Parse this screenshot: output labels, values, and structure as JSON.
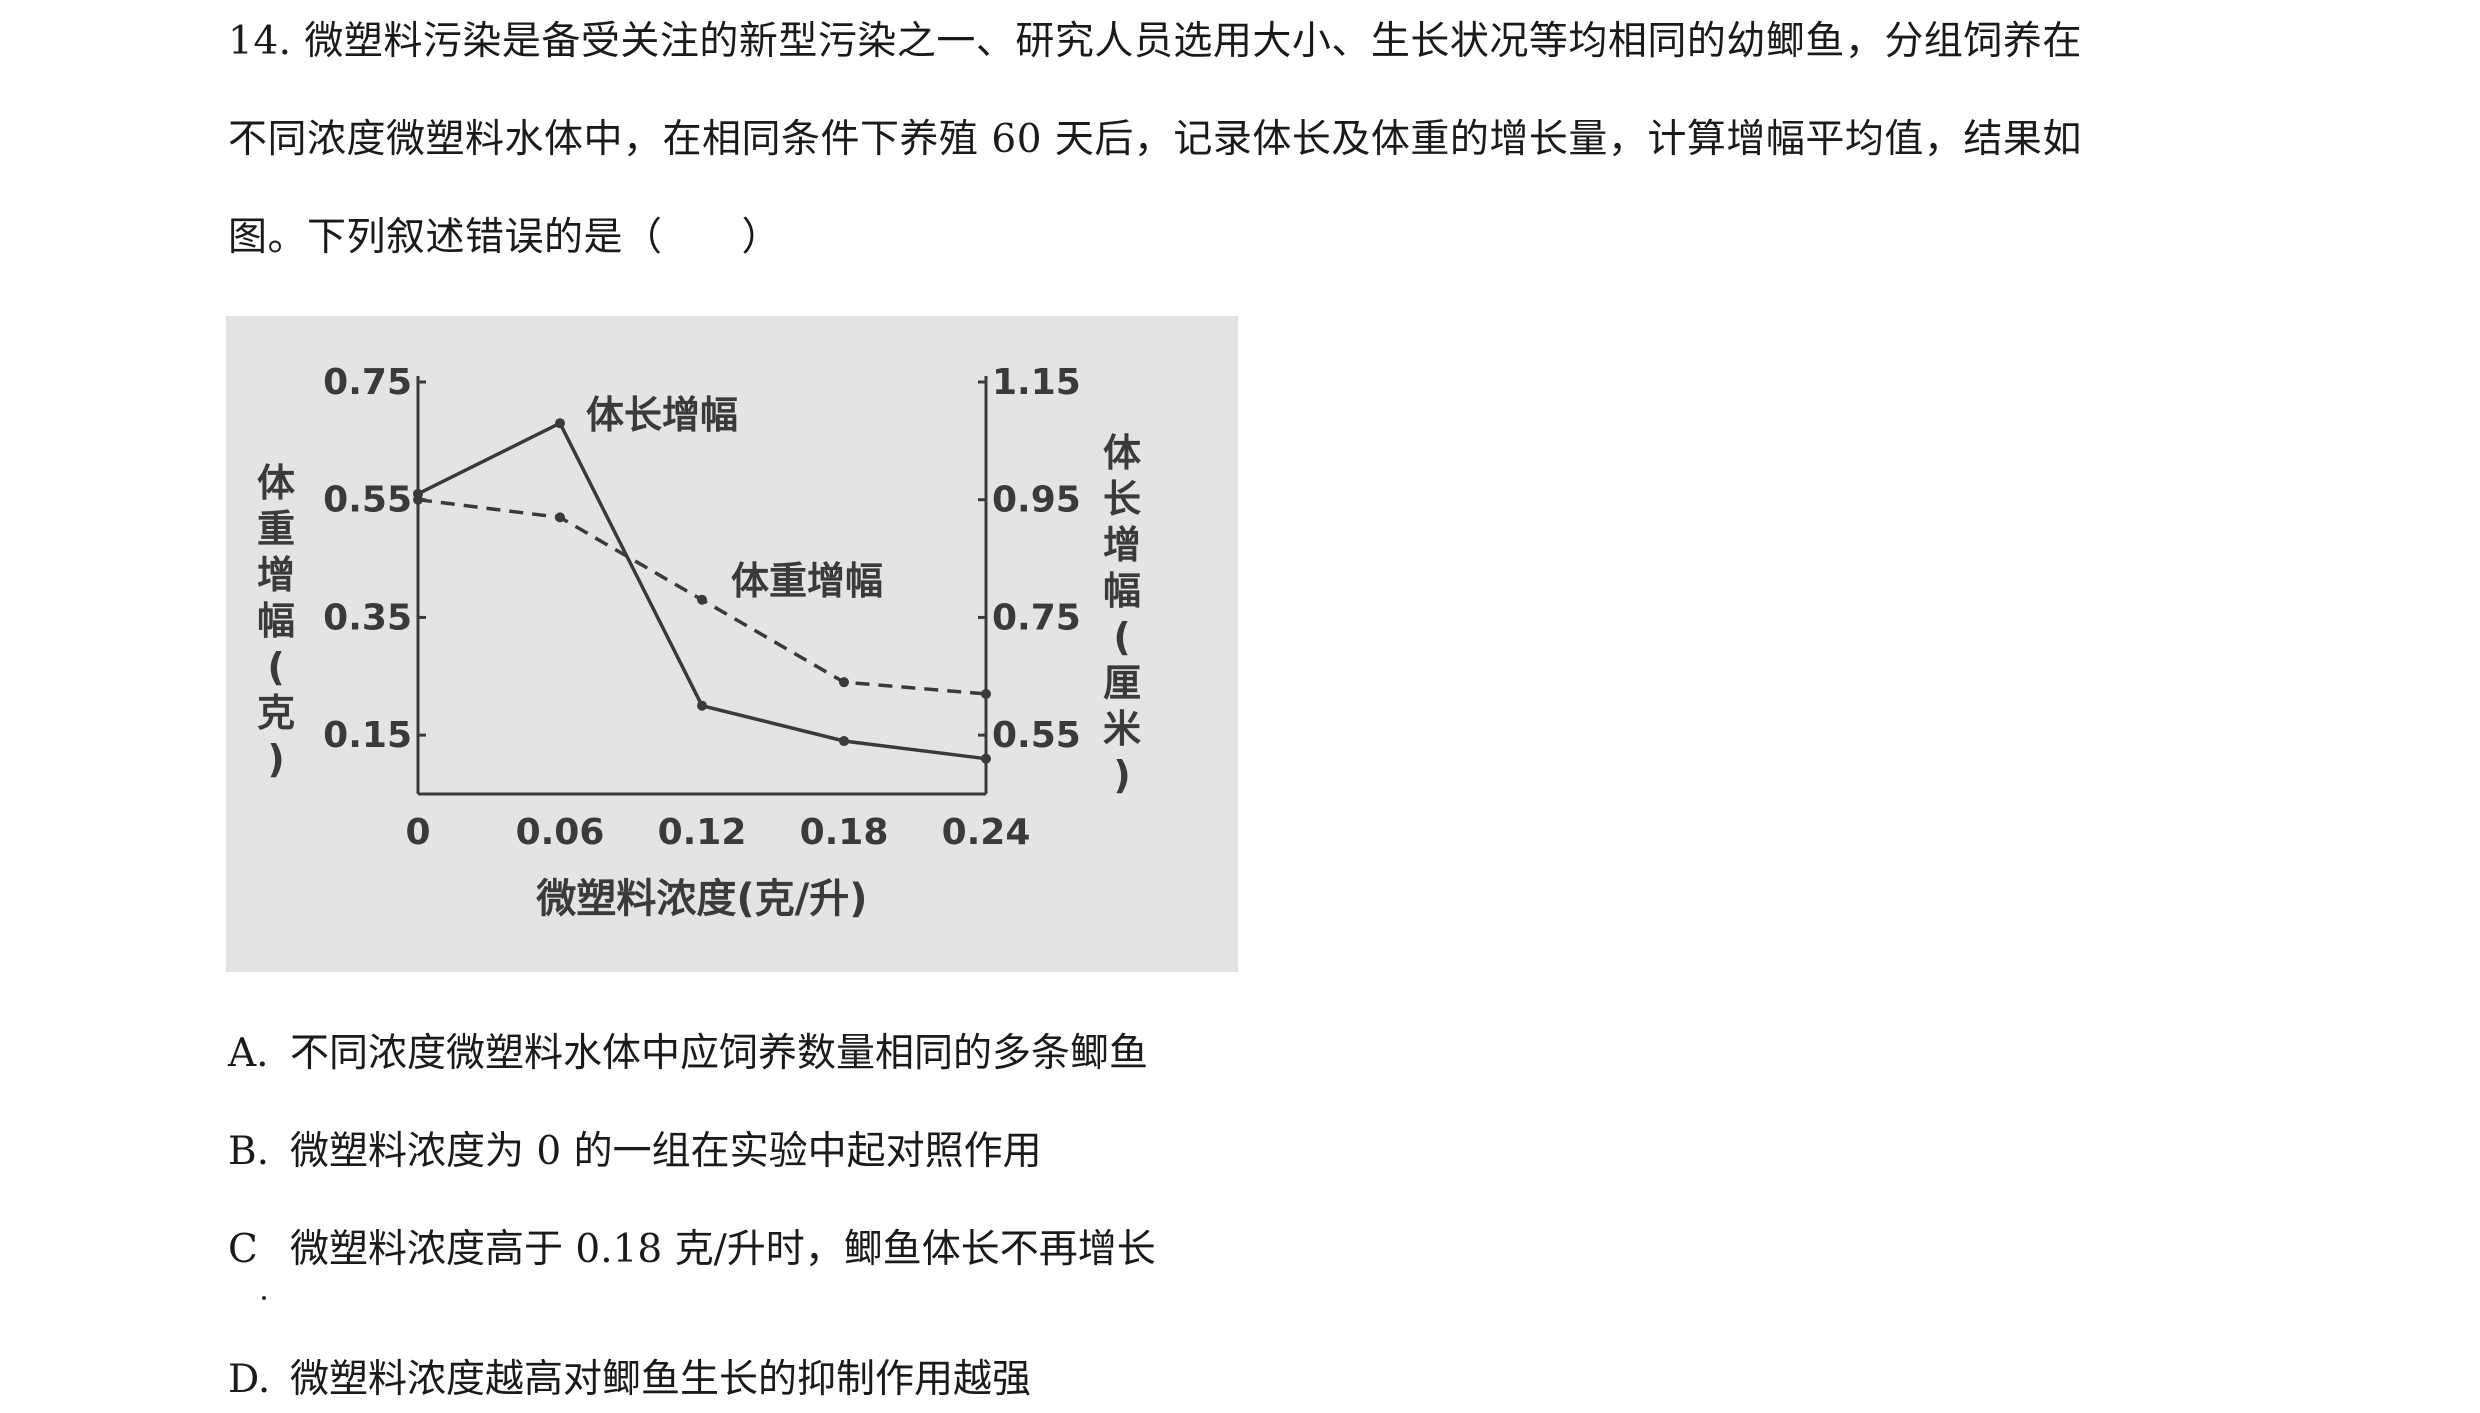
{
  "question": {
    "stem_lines": [
      "14. 微塑料污染是备受关注的新型污染之一、研究人员选用大小、生长状况等均相同的幼鲫鱼，分组饲养在",
      "不同浓度微塑料水体中，在相同条件下养殖 60 天后，记录体长及体重的增长量，计算增幅平均值，结果如",
      "图。下列叙述错误的是（　　）"
    ],
    "options": [
      {
        "letter": "A.",
        "text": "不同浓度微塑料水体中应饲养数量相同的多条鲫鱼"
      },
      {
        "letter": "B.",
        "text": "微塑料浓度为 0 的一组在实验中起对照作用"
      },
      {
        "letter": "C",
        "text": "微塑料浓度高于 0.18 克/升时，鲫鱼体长不再增长"
      },
      {
        "letter": "D.",
        "text": "微塑料浓度越高对鲫鱼生长的抑制作用越强"
      }
    ]
  },
  "chart_data": {
    "type": "line",
    "title": "",
    "xlabel": "微塑料浓度(克/升)",
    "x": [
      0,
      0.06,
      0.12,
      0.18,
      0.24
    ],
    "x_tick_labels": [
      "0",
      "0.06",
      "0.12",
      "0.18",
      "0.24"
    ],
    "ylabel_left": "体重增幅(克)",
    "ylabel_right": "体长增幅(厘米)",
    "y_left_ticks": [
      "0.75",
      "0.55",
      "0.35",
      "0.15"
    ],
    "y_right_ticks": [
      "1.15",
      "0.95",
      "0.75",
      "0.55"
    ],
    "ylim_left": [
      0.05,
      0.75
    ],
    "ylim_right": [
      0.45,
      1.15
    ],
    "grid": false,
    "series": [
      {
        "name": "体长增幅",
        "axis": "right",
        "style": "solid",
        "values": [
          0.96,
          1.08,
          0.6,
          0.54,
          0.51
        ]
      },
      {
        "name": "体重增幅",
        "axis": "left",
        "style": "dashed",
        "values": [
          0.55,
          0.52,
          0.38,
          0.24,
          0.22
        ]
      }
    ]
  }
}
